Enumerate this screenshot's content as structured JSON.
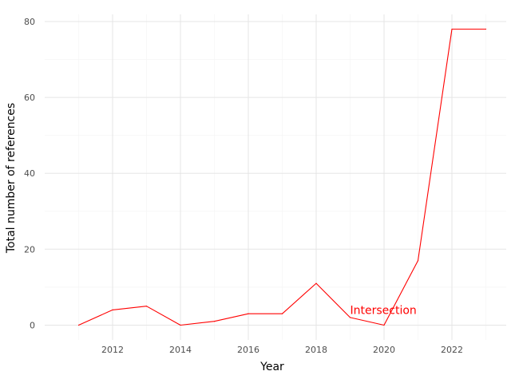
{
  "chart_data": {
    "type": "line",
    "title": "",
    "xlabel": "Year",
    "ylabel": "Total number of references",
    "xlim": [
      2010.0,
      2023.6
    ],
    "ylim": [
      -3.9,
      81.9
    ],
    "x_ticks": [
      2012,
      2014,
      2016,
      2018,
      2020,
      2022
    ],
    "y_ticks": [
      0,
      20,
      40,
      60,
      80
    ],
    "grid": true,
    "legend": "none",
    "series": [
      {
        "color": "#ff0000",
        "x": [
          2011,
          2012,
          2013,
          2014,
          2015,
          2016,
          2017,
          2018,
          2019,
          2020,
          2021,
          2022,
          2023
        ],
        "y": [
          0,
          4,
          5,
          0,
          1,
          3,
          3,
          11,
          2,
          0,
          17,
          78,
          78
        ]
      }
    ],
    "annotations": [
      {
        "text": "Intersection",
        "x": 2019,
        "y": 4,
        "color": "#ff0000"
      }
    ]
  }
}
